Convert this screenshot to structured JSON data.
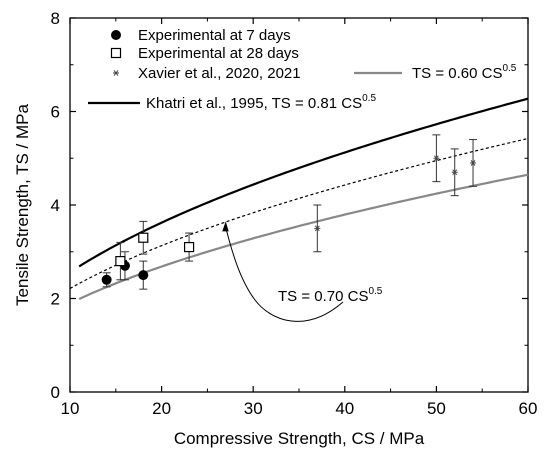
{
  "chart_data": {
    "type": "scatter",
    "xlabel": "Compressive Strength, CS  /  MPa",
    "ylabel": "Tensile Strength, TS  /  MPa",
    "xlim": [
      10,
      60
    ],
    "ylim": [
      0,
      8
    ],
    "xticks": [
      10,
      20,
      30,
      40,
      50,
      60
    ],
    "yticks": [
      0,
      2,
      4,
      6,
      8
    ],
    "grid": false,
    "legend_position": "top-left",
    "series": [
      {
        "name": "Experimental at 7 days",
        "kind": "points",
        "marker": "filled-circle",
        "points": [
          {
            "x": 14,
            "y": 2.4,
            "err": 0.15
          },
          {
            "x": 16,
            "y": 2.7,
            "err": 0.3
          },
          {
            "x": 18,
            "y": 2.5,
            "err": 0.3
          }
        ]
      },
      {
        "name": "Experimental at 28 days",
        "kind": "points",
        "marker": "open-square",
        "points": [
          {
            "x": 15.5,
            "y": 2.8,
            "err": 0.4
          },
          {
            "x": 18,
            "y": 3.3,
            "err": 0.35
          },
          {
            "x": 23,
            "y": 3.1,
            "err": 0.3
          }
        ]
      },
      {
        "name": "Xavier et al., 2020, 2021",
        "kind": "points",
        "marker": "asterisk",
        "points": [
          {
            "x": 37,
            "y": 3.5,
            "err": 0.5
          },
          {
            "x": 50,
            "y": 5.0,
            "err": 0.5
          },
          {
            "x": 52,
            "y": 4.7,
            "err": 0.5
          },
          {
            "x": 54,
            "y": 4.9,
            "err": 0.5
          }
        ]
      },
      {
        "name_base": "TS = 0.60 CS",
        "name_exp": "0.5",
        "kind": "curve",
        "coefficient": 0.6,
        "exponent": 0.5,
        "x_range": [
          11,
          60
        ],
        "color": "#888888",
        "style": "solid"
      },
      {
        "name_base": "Khatri et al., 1995, TS = 0.81 CS",
        "name_exp": "0.5",
        "kind": "curve",
        "coefficient": 0.81,
        "exponent": 0.5,
        "x_range": [
          11,
          60
        ],
        "color": "#000000",
        "style": "solid"
      },
      {
        "kind": "curve",
        "coefficient": 0.7,
        "exponent": 0.5,
        "x_range": [
          10,
          60
        ],
        "color": "#000000",
        "style": "dashed"
      }
    ],
    "annotation": {
      "text_base": "TS = 0.70 CS",
      "text_exp": "0.5",
      "arrow_target": {
        "x": 27,
        "y": 3.65
      }
    }
  }
}
